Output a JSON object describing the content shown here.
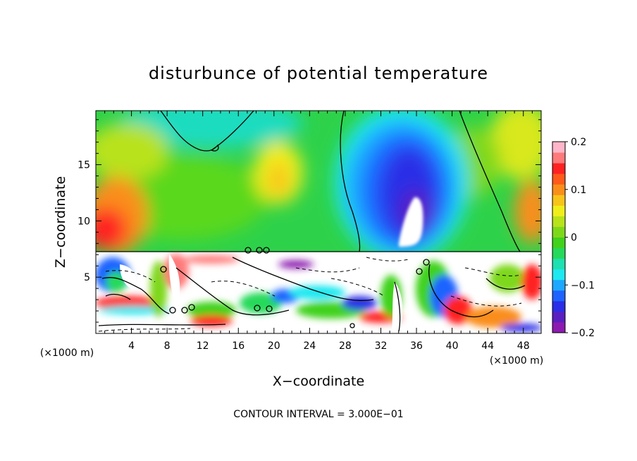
{
  "chart_data": {
    "type": "heatmap",
    "title": "disturbunce of potential temperature",
    "xlabel": "X−coordinate",
    "ylabel": "Z−coordinate",
    "x_unit_label": "(×1000 m)",
    "z_unit_label": "(×1000 m)",
    "footer": "CONTOUR INTERVAL = 3.000E−01",
    "xlim": [
      0,
      50
    ],
    "zlim": [
      0,
      19.8
    ],
    "x_ticks": [
      4,
      8,
      12,
      16,
      20,
      24,
      28,
      32,
      36,
      40,
      44,
      48
    ],
    "x_tick_labels": [
      "4",
      "8",
      "12",
      "16",
      "20",
      "24",
      "28",
      "32",
      "36",
      "40",
      "44",
      "48"
    ],
    "z_ticks": [
      5,
      10,
      15
    ],
    "z_tick_labels": [
      "5",
      "10",
      "15"
    ],
    "colorbar": {
      "range": [
        -0.2,
        0.2
      ],
      "ticks": [
        0.2,
        0.1,
        0,
        -0.1,
        -0.2
      ],
      "tick_labels": [
        "0.2",
        "0.1",
        "0",
        "−0.1",
        "−0.2"
      ],
      "colors": [
        "#8c1ab0",
        "#5a1fc0",
        "#2a2ee6",
        "#1f63ff",
        "#1ea8ff",
        "#1ee8f0",
        "#1ee0b0",
        "#26d95a",
        "#40d21c",
        "#7ed81a",
        "#b8e21a",
        "#f0ee1a",
        "#f8c41a",
        "#fa8e1a",
        "#ff5a1a",
        "#ff2222",
        "#ff7a7a",
        "#ffb6c8"
      ]
    },
    "regions": {
      "upper_layer_z_range": [
        7.2,
        19.8
      ],
      "lower_turbulent_layer_z_range": [
        0,
        7.2
      ],
      "negative_anomaly_x_center": 34,
      "negative_anomaly_min": -0.2,
      "positive_anomaly_x_center": 1,
      "positive_anomaly_max": 0.15
    }
  }
}
